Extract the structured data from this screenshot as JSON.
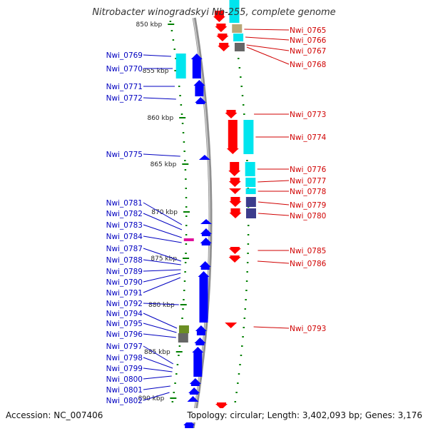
{
  "title": "Nitrobacter winogradskyi Nb-255, complete genome",
  "footer": {
    "accession": "Accession: NC_007406",
    "topology": "Topology: circular; Length: 3,402,093 bp; Genes: 3,176"
  },
  "colors": {
    "forward_strand": "#0000ff",
    "reverse_strand": "#ff0000",
    "cds_cyan": "#00e5ee",
    "cds_navy": "#3c3c8c",
    "cds_olive": "#6b8e23",
    "cds_magenta": "#e0109a",
    "cds_tan": "#b8a878",
    "cds_gray": "#666666",
    "backbone": "#909090",
    "ticks": "#008000"
  },
  "scale_labels": [
    {
      "label": "850 kbp",
      "kbp": 850
    },
    {
      "label": "855 kbp",
      "kbp": 855
    },
    {
      "label": "860 kbp",
      "kbp": 860
    },
    {
      "label": "865 kbp",
      "kbp": 865
    },
    {
      "label": "870 kbp",
      "kbp": 870
    },
    {
      "label": "875 kbp",
      "kbp": 875
    },
    {
      "label": "880 kbp",
      "kbp": 880
    },
    {
      "label": "885 kbp",
      "kbp": 885
    },
    {
      "label": "890 kbp",
      "kbp": 890
    }
  ],
  "left_labels": [
    "Nwi_0769",
    "Nwi_0770",
    "Nwi_0771",
    "Nwi_0772",
    "Nwi_0775",
    "Nwi_0781",
    "Nwi_0782",
    "Nwi_0783",
    "Nwi_0784",
    "Nwi_0787",
    "Nwi_0788",
    "Nwi_0789",
    "Nwi_0790",
    "Nwi_0791",
    "Nwi_0792",
    "Nwi_0794",
    "Nwi_0795",
    "Nwi_0796",
    "Nwi_0797",
    "Nwi_0798",
    "Nwi_0799",
    "Nwi_0800",
    "Nwi_0801",
    "Nwi_0802"
  ],
  "right_labels": [
    "Nwi_0765",
    "Nwi_0766",
    "Nwi_0767",
    "Nwi_0768",
    "Nwi_0773",
    "Nwi_0774",
    "Nwi_0776",
    "Nwi_0777",
    "Nwi_0778",
    "Nwi_0779",
    "Nwi_0780",
    "Nwi_0785",
    "Nwi_0786",
    "Nwi_0793"
  ]
}
